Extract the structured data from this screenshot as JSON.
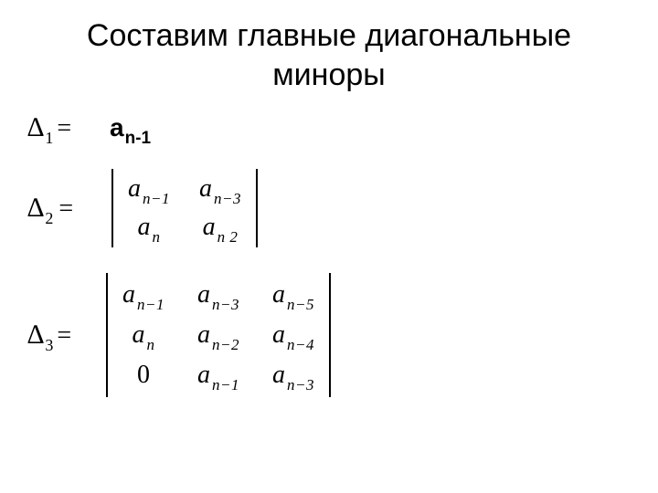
{
  "title_line1": "Составим главные диагональные",
  "title_line2": "миноры",
  "delta": "∆",
  "eq": "=",
  "d1": {
    "sub": "1",
    "eq": "=",
    "coef_base": "а",
    "coef_sub": "n-1"
  },
  "d2": {
    "sub": "2",
    "eq": "=",
    "det": {
      "cols": 2,
      "cells": [
        {
          "base": "a",
          "sub": "n−1"
        },
        {
          "base": "a",
          "sub": "n−3"
        },
        {
          "base": "a",
          "sub": "n"
        },
        {
          "base": "a",
          "sub": "n  2"
        }
      ]
    }
  },
  "d3": {
    "sub": "3",
    "eq": "=",
    "det": {
      "cols": 3,
      "cells": [
        {
          "base": "a",
          "sub": "n−1"
        },
        {
          "base": "a",
          "sub": "n−3"
        },
        {
          "base": "a",
          "sub": "n−5"
        },
        {
          "base": "a",
          "sub": "n"
        },
        {
          "base": "a",
          "sub": "n−2"
        },
        {
          "base": "a",
          "sub": "n−4"
        },
        {
          "zero": "0"
        },
        {
          "base": "a",
          "sub": "n−1"
        },
        {
          "base": "a",
          "sub": "n−3"
        }
      ]
    }
  },
  "style": {
    "bg": "#ffffff",
    "text_color": "#000000",
    "title_fontsize": 34,
    "body_fontsize": 28,
    "sub_fontsize": 17
  }
}
